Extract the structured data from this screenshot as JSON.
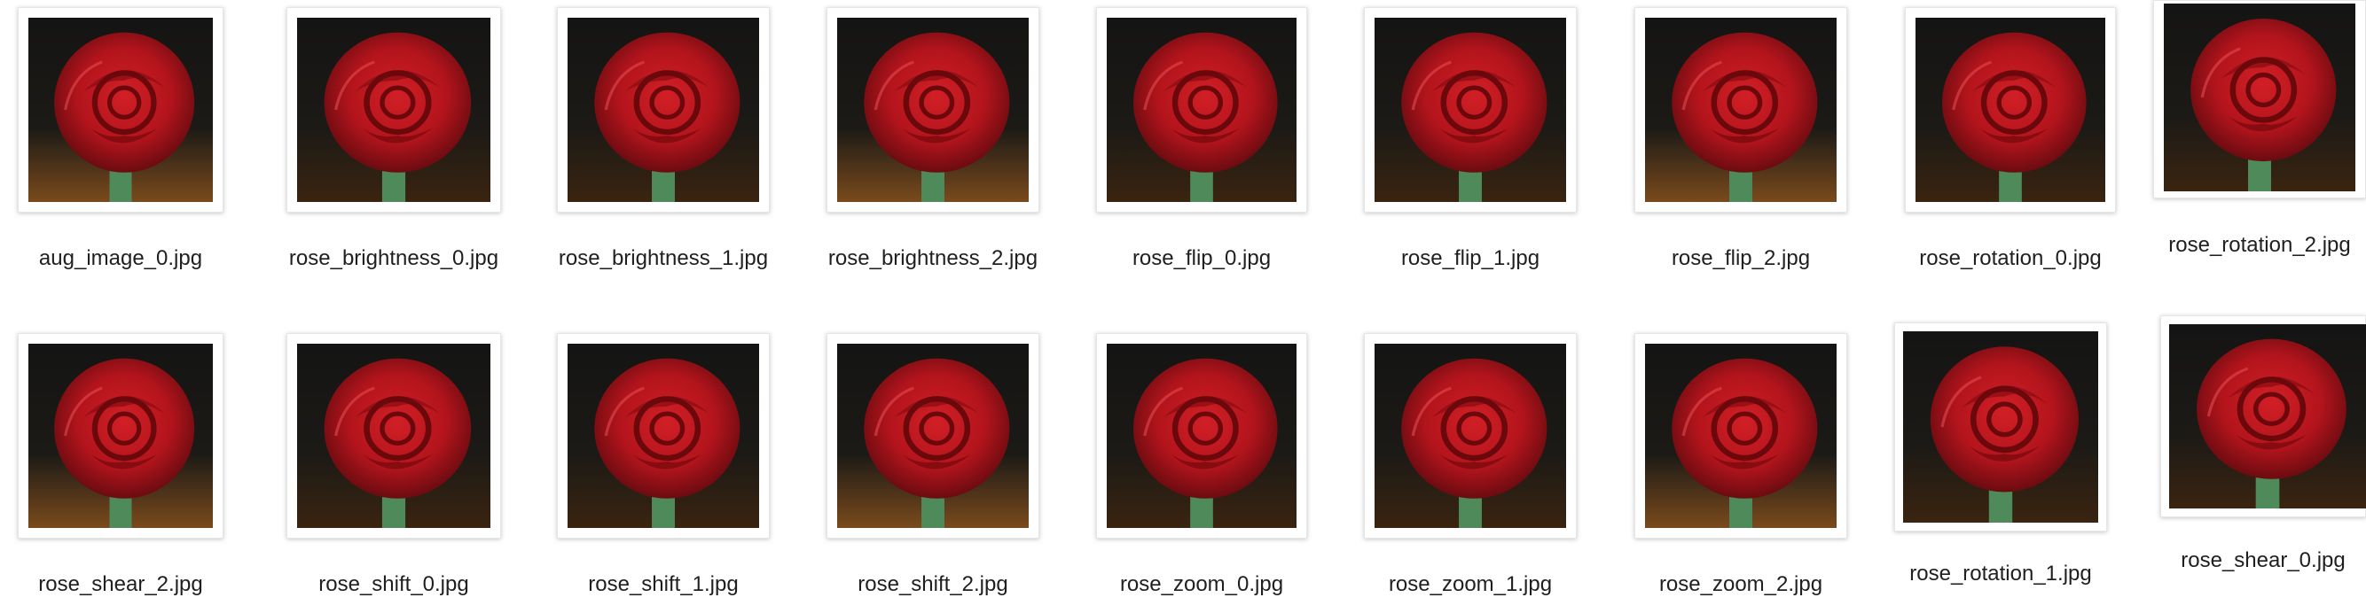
{
  "files": [
    {
      "name": "aug_image_0.jpg",
      "icon": "rose-image-thumbnail"
    },
    {
      "name": "rose_brightness_0.jpg",
      "icon": "rose-image-thumbnail"
    },
    {
      "name": "rose_brightness_1.jpg",
      "icon": "rose-image-thumbnail"
    },
    {
      "name": "rose_brightness_2.jpg",
      "icon": "rose-image-thumbnail"
    },
    {
      "name": "rose_flip_0.jpg",
      "icon": "rose-image-thumbnail"
    },
    {
      "name": "rose_flip_1.jpg",
      "icon": "rose-image-thumbnail"
    },
    {
      "name": "rose_flip_2.jpg",
      "icon": "rose-image-thumbnail"
    },
    {
      "name": "rose_rotation_0.jpg",
      "icon": "rose-image-thumbnail"
    },
    {
      "name": "rose_rotation_2.jpg",
      "icon": "rose-image-thumbnail"
    },
    {
      "name": "rose_shear_2.jpg",
      "icon": "rose-image-thumbnail"
    },
    {
      "name": "rose_shift_0.jpg",
      "icon": "rose-image-thumbnail"
    },
    {
      "name": "rose_shift_1.jpg",
      "icon": "rose-image-thumbnail"
    },
    {
      "name": "rose_shift_2.jpg",
      "icon": "rose-image-thumbnail"
    },
    {
      "name": "rose_zoom_0.jpg",
      "icon": "rose-image-thumbnail"
    },
    {
      "name": "rose_zoom_1.jpg",
      "icon": "rose-image-thumbnail"
    },
    {
      "name": "rose_zoom_2.jpg",
      "icon": "rose-image-thumbnail"
    },
    {
      "name": "rose_rotation_1.jpg",
      "icon": "rose-image-thumbnail"
    },
    {
      "name": "rose_shear_0.jpg",
      "icon": "rose-image-thumbnail"
    }
  ],
  "colors": {
    "rose_red": "#b3141c",
    "rose_dark": "#5a0a0e",
    "background_dark": "#141414",
    "background_warm": "#7a4a1c",
    "stem_green": "#4f8a5a"
  }
}
